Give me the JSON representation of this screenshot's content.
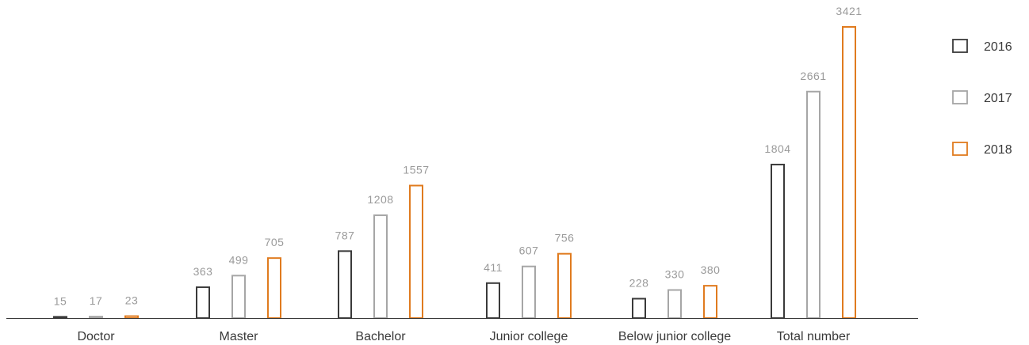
{
  "chart_data": {
    "type": "bar",
    "categories": [
      "Doctor",
      "Master",
      "Bachelor",
      "Junior college",
      "Below junior college",
      "Total number"
    ],
    "series": [
      {
        "name": "2016",
        "values": [
          15,
          363,
          787,
          411,
          228,
          1804
        ],
        "color": "#3a3a3a"
      },
      {
        "name": "2017",
        "values": [
          17,
          499,
          1208,
          607,
          330,
          2661
        ],
        "color": "#a6a6a6"
      },
      {
        "name": "2018",
        "values": [
          23,
          705,
          1557,
          756,
          380,
          3421
        ],
        "color": "#e07b1f"
      }
    ],
    "value_label_color": "#9a9a9a",
    "title": "",
    "xlabel": "",
    "ylabel": "",
    "ylim": [
      0,
      3421
    ],
    "grid": false,
    "legend": "right"
  }
}
